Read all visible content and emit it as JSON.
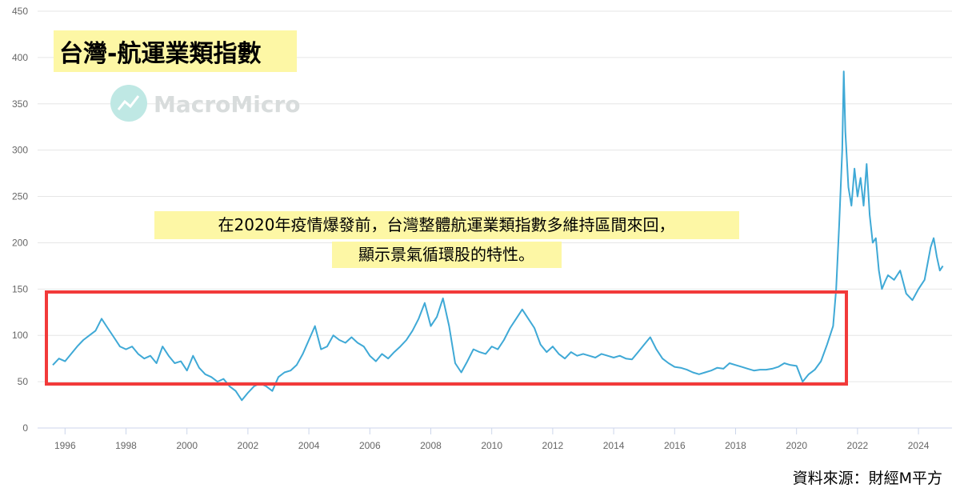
{
  "chart_data": {
    "type": "line",
    "title": "台灣-航運業類指數",
    "annotations": [
      "在2020年疫情爆發前，台灣整體航運業類指數多維持區間來回，",
      "顯示景氣循環股的特性。"
    ],
    "source": "資料來源：財經M平方",
    "watermark": "MacroMicro",
    "xlim": [
      1995.1,
      2025.1
    ],
    "xticks": [
      1996,
      1998,
      2000,
      2002,
      2004,
      2006,
      2008,
      2010,
      2012,
      2014,
      2016,
      2018,
      2020,
      2022,
      2024
    ],
    "ylim": [
      0,
      450
    ],
    "yticks": [
      0,
      50,
      100,
      150,
      200,
      250,
      300,
      350,
      400,
      450
    ],
    "grid": true,
    "x": [
      1995.6,
      1995.8,
      1996.0,
      1996.2,
      1996.4,
      1996.6,
      1996.8,
      1997.0,
      1997.2,
      1997.4,
      1997.6,
      1997.8,
      1998.0,
      1998.2,
      1998.4,
      1998.6,
      1998.8,
      1999.0,
      1999.2,
      1999.4,
      1999.6,
      1999.8,
      2000.0,
      2000.2,
      2000.4,
      2000.6,
      2000.8,
      2001.0,
      2001.2,
      2001.4,
      2001.6,
      2001.8,
      2002.0,
      2002.2,
      2002.4,
      2002.6,
      2002.8,
      2003.0,
      2003.2,
      2003.4,
      2003.6,
      2003.8,
      2004.0,
      2004.2,
      2004.4,
      2004.6,
      2004.8,
      2005.0,
      2005.2,
      2005.4,
      2005.6,
      2005.8,
      2006.0,
      2006.2,
      2006.4,
      2006.6,
      2006.8,
      2007.0,
      2007.2,
      2007.4,
      2007.6,
      2007.8,
      2008.0,
      2008.2,
      2008.4,
      2008.6,
      2008.8,
      2009.0,
      2009.2,
      2009.4,
      2009.6,
      2009.8,
      2010.0,
      2010.2,
      2010.4,
      2010.6,
      2010.8,
      2011.0,
      2011.2,
      2011.4,
      2011.6,
      2011.8,
      2012.0,
      2012.2,
      2012.4,
      2012.6,
      2012.8,
      2013.0,
      2013.2,
      2013.4,
      2013.6,
      2013.8,
      2014.0,
      2014.2,
      2014.4,
      2014.6,
      2014.8,
      2015.0,
      2015.2,
      2015.4,
      2015.6,
      2015.8,
      2016.0,
      2016.2,
      2016.4,
      2016.6,
      2016.8,
      2017.0,
      2017.2,
      2017.4,
      2017.6,
      2017.8,
      2018.0,
      2018.2,
      2018.4,
      2018.6,
      2018.8,
      2019.0,
      2019.2,
      2019.4,
      2019.6,
      2019.8,
      2020.0,
      2020.2,
      2020.4,
      2020.6,
      2020.8,
      2021.0,
      2021.2,
      2021.3,
      2021.4,
      2021.5,
      2021.55,
      2021.6,
      2021.7,
      2021.8,
      2021.9,
      2022.0,
      2022.1,
      2022.2,
      2022.3,
      2022.4,
      2022.5,
      2022.6,
      2022.7,
      2022.8,
      2022.9,
      2023.0,
      2023.2,
      2023.4,
      2023.6,
      2023.8,
      2024.0,
      2024.2,
      2024.4,
      2024.5,
      2024.6,
      2024.7,
      2024.8
    ],
    "series": [
      {
        "color": "#3fa9d6",
        "values": [
          68,
          75,
          72,
          80,
          88,
          95,
          100,
          105,
          118,
          108,
          98,
          88,
          85,
          88,
          80,
          75,
          78,
          70,
          88,
          78,
          70,
          72,
          62,
          78,
          65,
          58,
          55,
          50,
          53,
          45,
          40,
          30,
          38,
          45,
          48,
          45,
          40,
          55,
          60,
          62,
          68,
          80,
          95,
          110,
          85,
          88,
          100,
          95,
          92,
          98,
          92,
          88,
          78,
          72,
          80,
          75,
          82,
          88,
          95,
          105,
          118,
          135,
          110,
          120,
          140,
          110,
          70,
          60,
          72,
          85,
          82,
          80,
          88,
          85,
          95,
          108,
          118,
          128,
          118,
          108,
          90,
          82,
          88,
          80,
          75,
          82,
          78,
          80,
          78,
          76,
          80,
          78,
          76,
          78,
          75,
          74,
          82,
          90,
          98,
          85,
          75,
          70,
          66,
          65,
          63,
          60,
          58,
          60,
          62,
          65,
          64,
          70,
          68,
          66,
          64,
          62,
          63,
          63,
          64,
          66,
          70,
          68,
          67,
          50,
          58,
          63,
          72,
          90,
          110,
          150,
          220,
          300,
          385,
          320,
          260,
          240,
          280,
          250,
          270,
          240,
          285,
          230,
          200,
          205,
          170,
          150,
          158,
          165,
          160,
          170,
          145,
          138,
          150,
          160,
          195,
          205,
          185,
          170,
          175
        ]
      }
    ]
  }
}
